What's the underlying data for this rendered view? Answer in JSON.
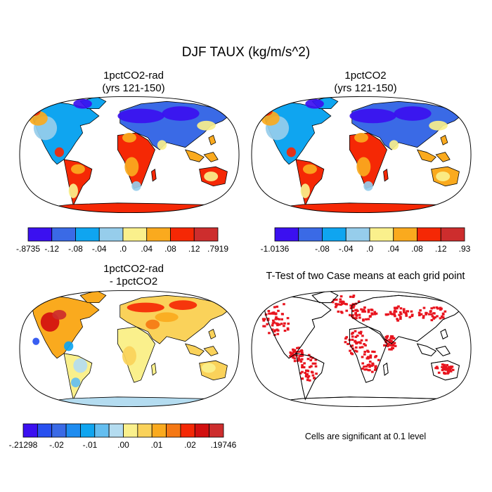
{
  "figure": {
    "title": "DJF TAUX (kg/m/s^2)"
  },
  "panels": [
    {
      "id": "p1",
      "title_line1": "1pctCO2-rad",
      "title_line2": "(yrs 121-150)",
      "colorbar": {
        "colors": [
          "#3b10f0",
          "#3a6ae6",
          "#0fa5f0",
          "#96cdeb",
          "#faf08c",
          "#faaa1e",
          "#f52805",
          "#cd2d2d"
        ],
        "labels": [
          "-.8735",
          "-.12",
          "-.08",
          "-.04",
          ".0",
          ".04",
          ".08",
          ".12",
          ".7919"
        ]
      }
    },
    {
      "id": "p2",
      "title_line1": "1pctCO2",
      "title_line2": "(yrs 121-150)",
      "colorbar": {
        "colors": [
          "#3b10f0",
          "#3a6ae6",
          "#0fa5f0",
          "#96cdeb",
          "#faf08c",
          "#faaa1e",
          "#f52805",
          "#cd2d2d"
        ],
        "labels": [
          "-1.0136",
          "",
          "-.08",
          "-.04",
          ".0",
          ".04",
          ".08",
          ".12",
          ".93"
        ]
      }
    },
    {
      "id": "p3",
      "title_line1": "1pctCO2-rad",
      "title_line2": "- 1pctCO2",
      "colorbar": {
        "colors": [
          "#3b10f0",
          "#2850f0",
          "#3a6ae6",
          "#1e8cf0",
          "#0fa5f0",
          "#64bef0",
          "#b4dcf0",
          "#faf08c",
          "#fad25a",
          "#faaa1e",
          "#f57814",
          "#f52805",
          "#d20f0f",
          "#cd2d2d"
        ],
        "labels": [
          "-.21298",
          "-.02",
          "-.01",
          ".00",
          ".01",
          ".02",
          ".19746"
        ]
      }
    },
    {
      "id": "p4",
      "title_line1": "T-Test of two Case means at each grid point",
      "note": "Cells are significant at 0.1 level",
      "significant_color": "#e8141e"
    }
  ],
  "map_style": {
    "projection": "Robinson",
    "land_outline_color": "#000000",
    "ocean_color": "#ffffff"
  }
}
